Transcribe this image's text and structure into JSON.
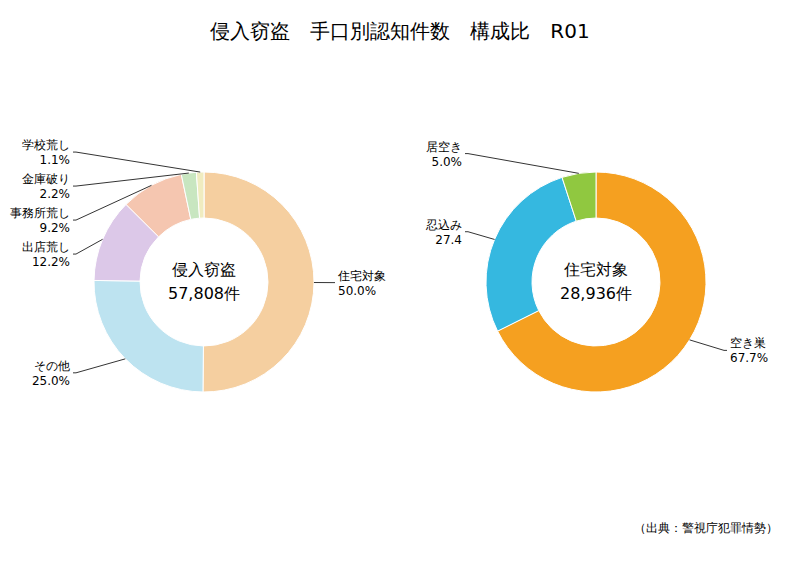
{
  "title": "侵入窃盗　手口別認知件数　構成比　R01",
  "annotations": [
    "（出典：警視庁犯罪情勢）"
  ],
  "chart_data": [
    {
      "type": "pie",
      "annotations": [
        "侵入窃盗",
        "57,808件"
      ],
      "categories": [
        "住宅対象",
        "その他",
        "出店荒し",
        "事務所荒し",
        "金庫破り",
        "学校荒し"
      ],
      "values": [
        50.0,
        25.0,
        12.2,
        9.2,
        2.2,
        1.1
      ],
      "value_labels": [
        "50.0%",
        "25.0%",
        "12.2%",
        "9.2%",
        "2.2%",
        "1.1%"
      ],
      "colors": [
        "#F5CFA0",
        "#BDE3F0",
        "#DCC8E8",
        "#F5C6B0",
        "#C8E6C0",
        "#F0ECC0"
      ],
      "data_labels": true
    },
    {
      "type": "pie",
      "annotations": [
        "住宅対象",
        "28,936件"
      ],
      "categories": [
        "空き巣",
        "忍込み",
        "居空き"
      ],
      "values": [
        67.7,
        27.4,
        5.0
      ],
      "value_labels": [
        "67.7%",
        "27.4",
        "5.0%"
      ],
      "colors": [
        "#F5A020",
        "#35B8E0",
        "#90C840"
      ],
      "data_labels": true
    }
  ]
}
